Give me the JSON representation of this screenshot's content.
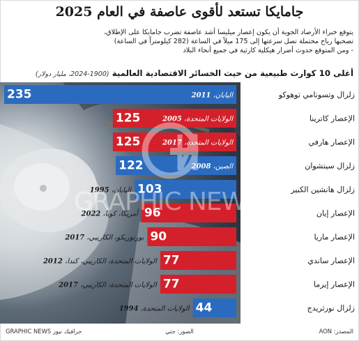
{
  "title": "جامايكا تستعد لأقوى عاصفة في العام 2025",
  "intro": [
    "يتوقع خبراء الأرصاد الجوية أن يكون إعصار ميليسا أشد عاصفة تضرب جامايكا على الإطلاق،",
    "تصحبها رياح محتملة تصل سرعتها إلى 175 ميلاً في الساعة (282 كيلومتراً في الساعة)",
    "- ومن المتوقع حدوث أضرار هيكلية كارثية في جميع أنحاء البلاد"
  ],
  "chart_heading": "أغلى 10 كوارث طبيعية من حيث الخسائر الاقتصادية العالمية",
  "chart_subheading": "(1900-2024، مليار دولار)",
  "colors": {
    "red": "#d4202a",
    "blue": "#2a6bbf",
    "photo_dark": "#2e3742",
    "photo_light": "#d9dde0"
  },
  "chart_data": {
    "type": "bar",
    "orientation": "horizontal",
    "unit": "مليار دولار",
    "categories": [
      "زلزال وتسونامي توهوكو",
      "الإعصار كاترينا",
      "الإعصار هارفي",
      "زلزال سيتشوان",
      "زلزال هانشين الكبير",
      "الإعصار إيان",
      "الإعصار ماريا",
      "الإعصار ساندي",
      "الإعصار إيرما",
      "زلزال نورثريدج"
    ],
    "values": [
      235,
      125,
      125,
      122,
      103,
      96,
      90,
      77,
      77,
      44
    ],
    "types": [
      "earthquake",
      "hurricane",
      "hurricane",
      "earthquake",
      "earthquake",
      "hurricane",
      "hurricane",
      "hurricane",
      "hurricane",
      "earthquake"
    ],
    "locations": [
      "اليابان",
      "الولايات المتحدة",
      "الولايات المتحدة",
      "الصين",
      "اليابان",
      "أمريكا، كوبا",
      "بورتوريكو، الكاريبي",
      "الولايات المتحدة، الكاريبي، كندا",
      "الولايات المتحدة، الكاريبي",
      "الولايات المتحدة"
    ],
    "years": [
      "2011",
      "2005",
      "2017",
      "2008",
      "1995",
      "2022",
      "2017",
      "2012",
      "2017",
      "1994"
    ],
    "xlim": [
      0,
      235
    ]
  },
  "watermark": "GRAPHIC NEWS",
  "footer": {
    "source": "المصدر: AON",
    "images": "الصور: جتي",
    "credit": "GRAPHIC NEWS جرافيك نيوز"
  }
}
